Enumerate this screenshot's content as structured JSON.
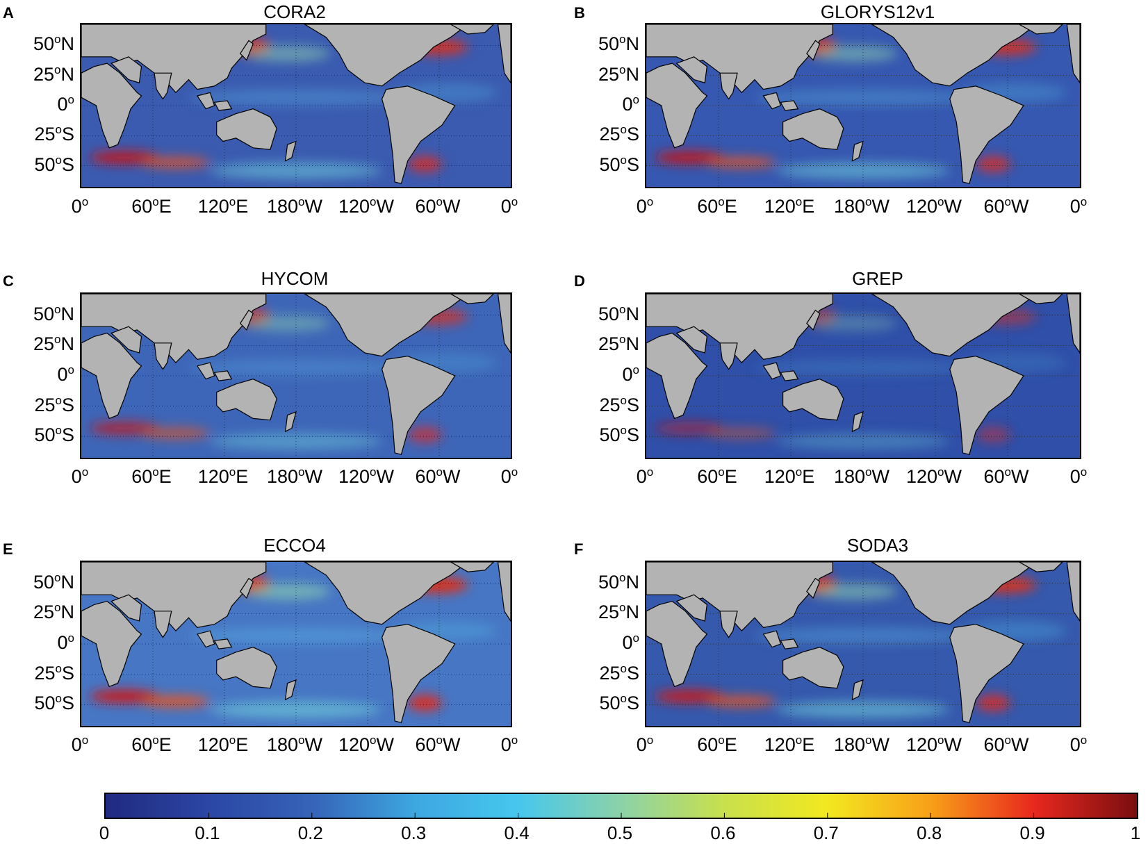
{
  "panels": [
    {
      "letter": "A",
      "title": "CORA2",
      "colors": {
        "ocean": "#3b5bb0"
      }
    },
    {
      "letter": "B",
      "title": "GLORYS12v1",
      "colors": {
        "ocean": "#3658b0"
      }
    },
    {
      "letter": "C",
      "title": "HYCOM",
      "colors": {
        "ocean": "#3e66b8"
      }
    },
    {
      "letter": "D",
      "title": "GREP",
      "colors": {
        "ocean": "#2f4fa8"
      }
    },
    {
      "letter": "E",
      "title": "ECCO4",
      "colors": {
        "ocean": "#4776c4"
      }
    },
    {
      "letter": "F",
      "title": "SODA3",
      "colors": {
        "ocean": "#3559ad"
      }
    }
  ],
  "lat_ticks": [
    {
      "num": "50",
      "sup": "o",
      "dir": "N"
    },
    {
      "num": "25",
      "sup": "o",
      "dir": "N"
    },
    {
      "num": "0",
      "sup": "o",
      "dir": ""
    },
    {
      "num": "25",
      "sup": "o",
      "dir": "S"
    },
    {
      "num": "50",
      "sup": "o",
      "dir": "S"
    }
  ],
  "lon_ticks": [
    {
      "num": "0",
      "sup": "o",
      "dir": ""
    },
    {
      "num": "60",
      "sup": "o",
      "dir": "E"
    },
    {
      "num": "120",
      "sup": "o",
      "dir": "E"
    },
    {
      "num": "180",
      "sup": "o",
      "dir": "W"
    },
    {
      "num": "120",
      "sup": "o",
      "dir": "W"
    },
    {
      "num": "60",
      "sup": "o",
      "dir": "W"
    },
    {
      "num": "0",
      "sup": "o",
      "dir": ""
    }
  ],
  "colorbar": {
    "ticks": [
      "0",
      "0.1",
      "0.2",
      "0.3",
      "0.4",
      "0.5",
      "0.6",
      "0.7",
      "0.8",
      "0.9",
      "1"
    ],
    "range": [
      0,
      1
    ],
    "colors": [
      "#202a80",
      "#2b46a4",
      "#3663b8",
      "#3da7e0",
      "#46c7ee",
      "#8cd2a8",
      "#c8e04c",
      "#f2e820",
      "#f8a018",
      "#e8281e",
      "#7a0e10"
    ]
  },
  "colors": {
    "land": "#b3b3b3",
    "coast": "#000000"
  }
}
